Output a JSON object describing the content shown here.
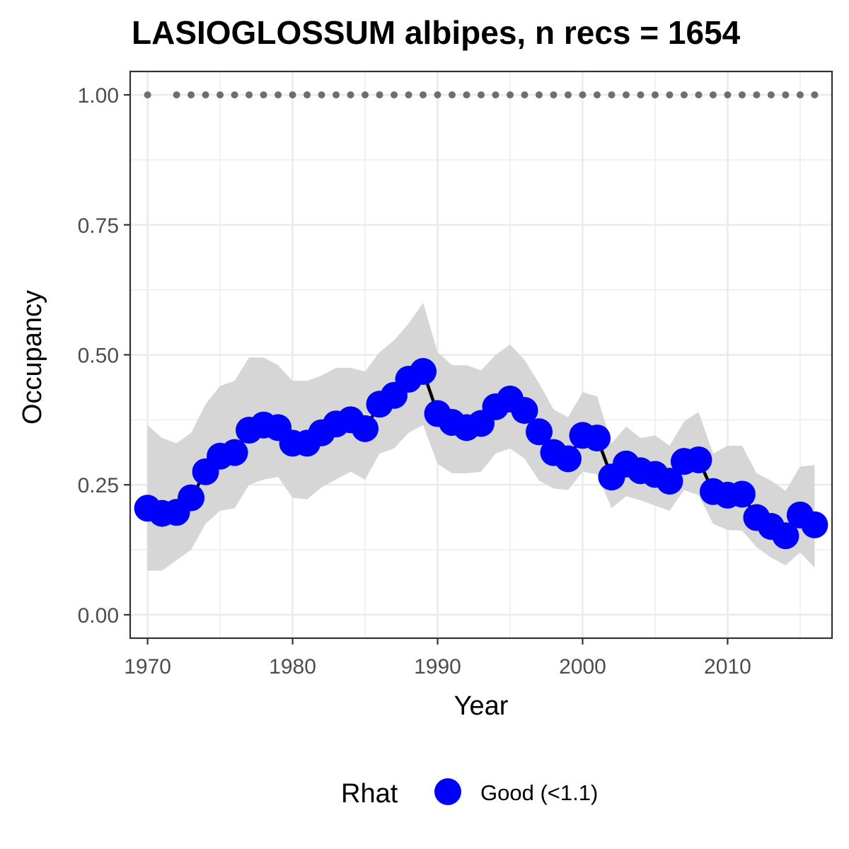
{
  "chart_data": {
    "type": "line",
    "title": "LASIOGLOSSUM albipes, n recs = 1654",
    "xlabel": "Year",
    "ylabel": "Occupancy",
    "xlim": [
      1968.8,
      2017.2
    ],
    "ylim": [
      -0.045,
      1.045
    ],
    "x_ticks": [
      1970,
      1980,
      1990,
      2000,
      2010
    ],
    "x_tick_labels": [
      "1970",
      "1980",
      "1990",
      "2000",
      "2010"
    ],
    "y_ticks": [
      0,
      0.25,
      0.5,
      0.75,
      1.0
    ],
    "y_tick_labels": [
      "0.00",
      "0.25",
      "0.50",
      "0.75",
      "1.00"
    ],
    "grid": true,
    "legend": {
      "position": "bottom",
      "title": "Rhat",
      "entries": [
        {
          "label": "Good (<1.1)",
          "color": "#0000ff"
        }
      ]
    },
    "colors": {
      "points": "#0000ff",
      "line": "#000000",
      "ribbon": "#d6d6d6",
      "record_dots": "#6e6e6e",
      "grid": "#ebebeb",
      "panel_border": "#333333"
    },
    "series": [
      {
        "name": "Occupancy",
        "x": [
          1970,
          1971,
          1972,
          1973,
          1974,
          1975,
          1976,
          1977,
          1978,
          1979,
          1980,
          1981,
          1982,
          1983,
          1984,
          1985,
          1986,
          1987,
          1988,
          1989,
          1990,
          1991,
          1992,
          1993,
          1994,
          1995,
          1996,
          1997,
          1998,
          1999,
          2000,
          2001,
          2002,
          2003,
          2004,
          2005,
          2006,
          2007,
          2008,
          2009,
          2010,
          2011,
          2012,
          2013,
          2014,
          2015,
          2016
        ],
        "y": [
          0.205,
          0.195,
          0.197,
          0.225,
          0.275,
          0.305,
          0.312,
          0.355,
          0.365,
          0.36,
          0.33,
          0.33,
          0.35,
          0.367,
          0.375,
          0.358,
          0.405,
          0.422,
          0.453,
          0.468,
          0.387,
          0.37,
          0.36,
          0.368,
          0.4,
          0.415,
          0.393,
          0.352,
          0.312,
          0.3,
          0.345,
          0.34,
          0.265,
          0.29,
          0.277,
          0.27,
          0.257,
          0.295,
          0.298,
          0.237,
          0.23,
          0.232,
          0.187,
          0.17,
          0.152,
          0.192,
          0.173
        ]
      }
    ],
    "ribbon": {
      "x": [
        1970,
        1971,
        1972,
        1973,
        1974,
        1975,
        1976,
        1977,
        1978,
        1979,
        1980,
        1981,
        1982,
        1983,
        1984,
        1985,
        1986,
        1987,
        1988,
        1989,
        1990,
        1991,
        1992,
        1993,
        1994,
        1995,
        1996,
        1997,
        1998,
        1999,
        2000,
        2001,
        2002,
        2003,
        2004,
        2005,
        2006,
        2007,
        2008,
        2009,
        2010,
        2011,
        2012,
        2013,
        2014,
        2015,
        2016
      ],
      "lower": [
        0.085,
        0.085,
        0.105,
        0.125,
        0.175,
        0.2,
        0.205,
        0.25,
        0.26,
        0.265,
        0.225,
        0.222,
        0.245,
        0.26,
        0.275,
        0.26,
        0.31,
        0.32,
        0.35,
        0.365,
        0.29,
        0.272,
        0.272,
        0.275,
        0.31,
        0.32,
        0.3,
        0.258,
        0.243,
        0.24,
        0.275,
        0.27,
        0.205,
        0.228,
        0.22,
        0.21,
        0.2,
        0.24,
        0.23,
        0.175,
        0.163,
        0.162,
        0.13,
        0.11,
        0.095,
        0.12,
        0.09
      ],
      "upper": [
        0.365,
        0.34,
        0.33,
        0.35,
        0.405,
        0.44,
        0.45,
        0.495,
        0.495,
        0.48,
        0.45,
        0.45,
        0.46,
        0.475,
        0.475,
        0.468,
        0.505,
        0.528,
        0.56,
        0.6,
        0.505,
        0.48,
        0.48,
        0.47,
        0.5,
        0.52,
        0.49,
        0.445,
        0.395,
        0.38,
        0.428,
        0.42,
        0.33,
        0.362,
        0.34,
        0.345,
        0.325,
        0.372,
        0.39,
        0.31,
        0.325,
        0.325,
        0.272,
        0.258,
        0.238,
        0.285,
        0.288
      ]
    },
    "record_years": {
      "y": 1.0,
      "x": [
        1970,
        1972,
        1973,
        1974,
        1975,
        1976,
        1977,
        1978,
        1979,
        1980,
        1981,
        1982,
        1983,
        1984,
        1985,
        1986,
        1987,
        1988,
        1989,
        1990,
        1991,
        1992,
        1993,
        1994,
        1995,
        1996,
        1997,
        1998,
        1999,
        2000,
        2001,
        2002,
        2003,
        2004,
        2005,
        2006,
        2007,
        2008,
        2009,
        2010,
        2011,
        2012,
        2013,
        2014,
        2015,
        2016
      ]
    }
  }
}
